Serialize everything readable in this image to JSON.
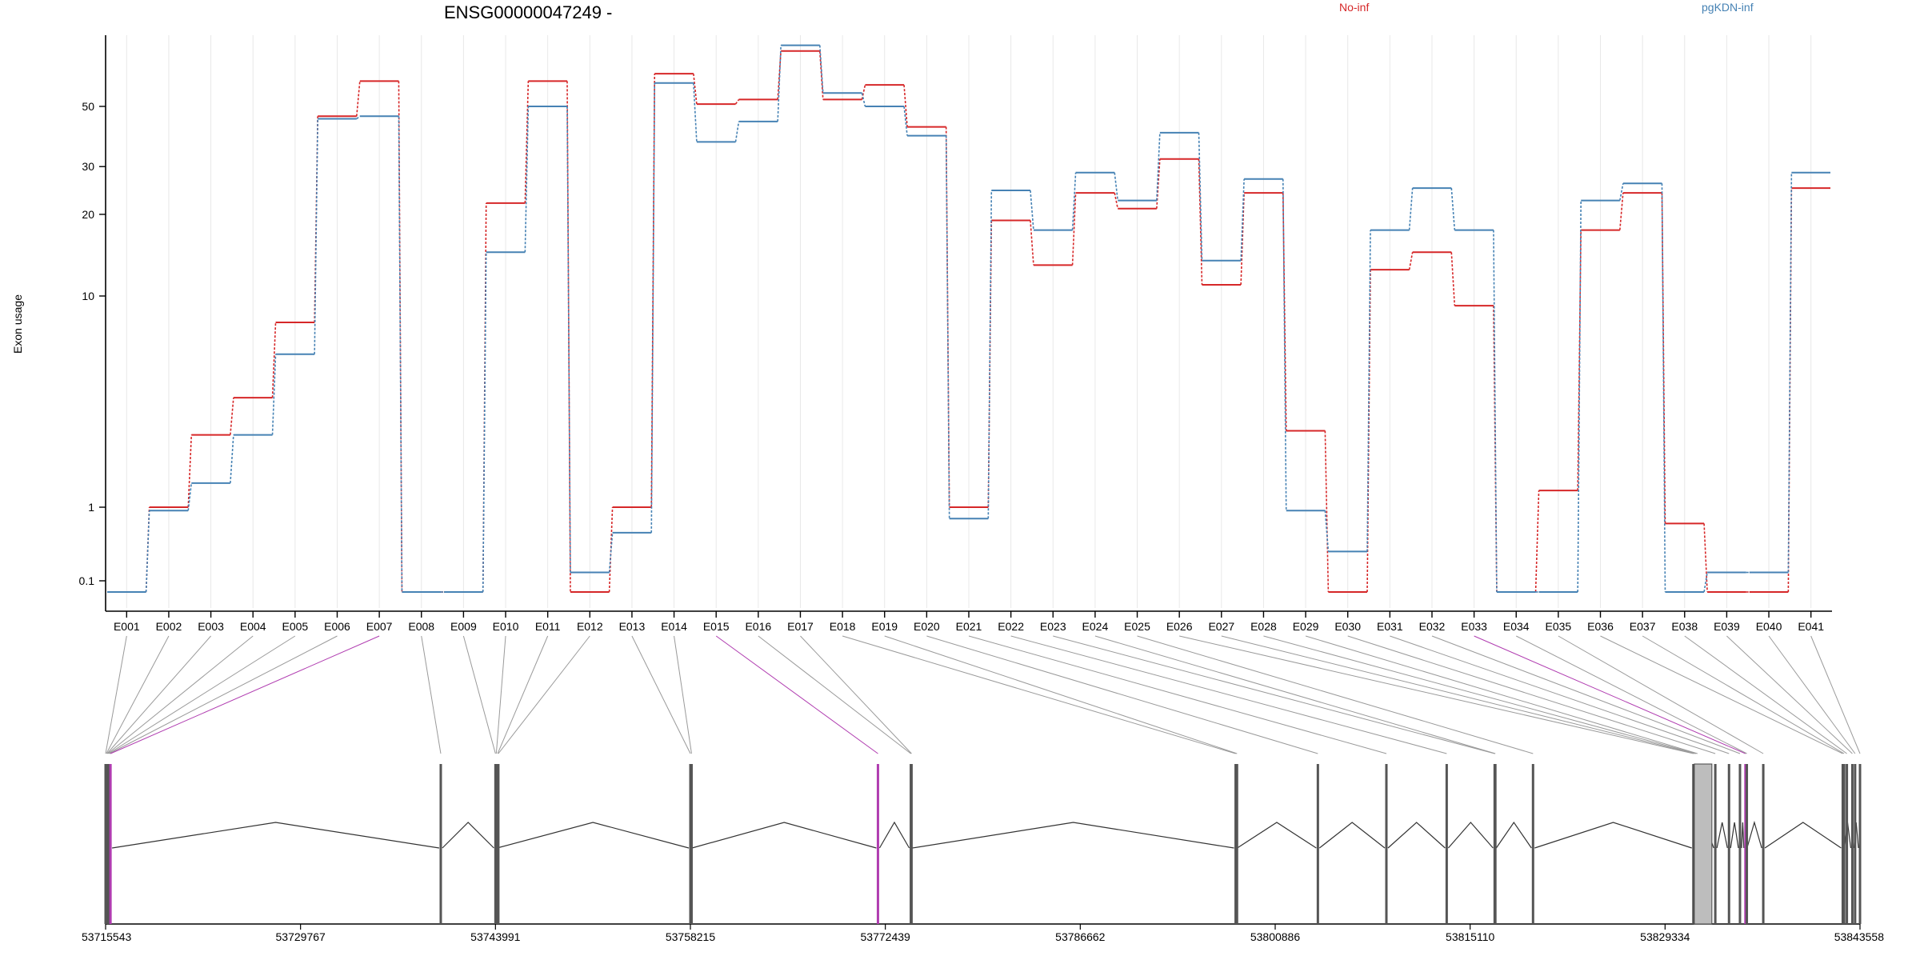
{
  "chart_data": {
    "type": "line",
    "title": "ENSG00000047249 -",
    "ylabel": "Exon usage",
    "xlabel": "",
    "y_scale": "log-like",
    "y_floor_value": 0.07,
    "y_ticks": [
      0.1,
      1,
      10,
      20,
      30,
      50
    ],
    "y_tick_labels": [
      "0.1",
      "1",
      "10",
      "20",
      "30",
      "50"
    ],
    "grid": "vertical-light",
    "legend_placement": "top",
    "categories": [
      "E001",
      "E002",
      "E003",
      "E004",
      "E005",
      "E006",
      "E007",
      "E008",
      "E009",
      "E010",
      "E011",
      "E012",
      "E013",
      "E014",
      "E015",
      "E016",
      "E017",
      "E018",
      "E019",
      "E020",
      "E021",
      "E022",
      "E023",
      "E024",
      "E025",
      "E026",
      "E027",
      "E028",
      "E029",
      "E030",
      "E031",
      "E032",
      "E033",
      "E034",
      "E035",
      "E036",
      "E037",
      "E038",
      "E039",
      "E040",
      "E041"
    ],
    "series": [
      {
        "name": "No-inf",
        "color": "#d62728",
        "values": [
          0.07,
          1.0,
          2.2,
          3.3,
          7.5,
          46,
          62,
          0.07,
          0.07,
          22,
          62,
          0.07,
          1.0,
          66,
          51,
          53,
          80,
          53,
          60,
          42,
          1.0,
          19,
          13,
          24,
          21,
          32,
          11,
          24,
          2.3,
          0.07,
          12.5,
          14.5,
          9,
          0.07,
          1.2,
          17.5,
          24,
          0.6,
          0.07,
          0.07,
          25
        ]
      },
      {
        "name": "pgKDN-inf",
        "color": "#4682b4",
        "values": [
          0.07,
          0.9,
          1.3,
          2.2,
          5.3,
          45,
          46,
          0.07,
          0.07,
          14.5,
          50,
          0.13,
          0.45,
          61,
          37,
          44,
          84,
          56,
          50,
          39,
          0.7,
          24.5,
          17.5,
          28.5,
          22.5,
          40,
          13.5,
          27,
          0.9,
          0.25,
          17.5,
          25,
          17.5,
          0.07,
          0.07,
          22.5,
          26,
          0.07,
          0.13,
          0.13,
          28.5
        ]
      }
    ],
    "highlighted_exons": [
      "E007",
      "E015",
      "E033"
    ],
    "highlight_color": "#b03cb0",
    "genomic_axis_labels": [
      "53715543",
      "53729767",
      "53743991",
      "53758215",
      "53772439",
      "53786662",
      "53800886",
      "53815110",
      "53829334",
      "53843558"
    ],
    "genomic_start": 53715543,
    "genomic_end": 53843558,
    "exon_positions": [
      53715543,
      53715600,
      53715650,
      53715700,
      53715760,
      53715820,
      53715900,
      53740000,
      53743991,
      53744050,
      53744150,
      53744200,
      53758215,
      53758300,
      53771900,
      53774300,
      53774350,
      53798000,
      53798100,
      53804000,
      53809000,
      53813400,
      53816900,
      53816950,
      53819700,
      53831400,
      53831500,
      53831600,
      53831700,
      53833000,
      53834000,
      53834800,
      53835200,
      53835300,
      53836500,
      53842300,
      53842400,
      53842600,
      53843000,
      53843200,
      53843558
    ]
  }
}
